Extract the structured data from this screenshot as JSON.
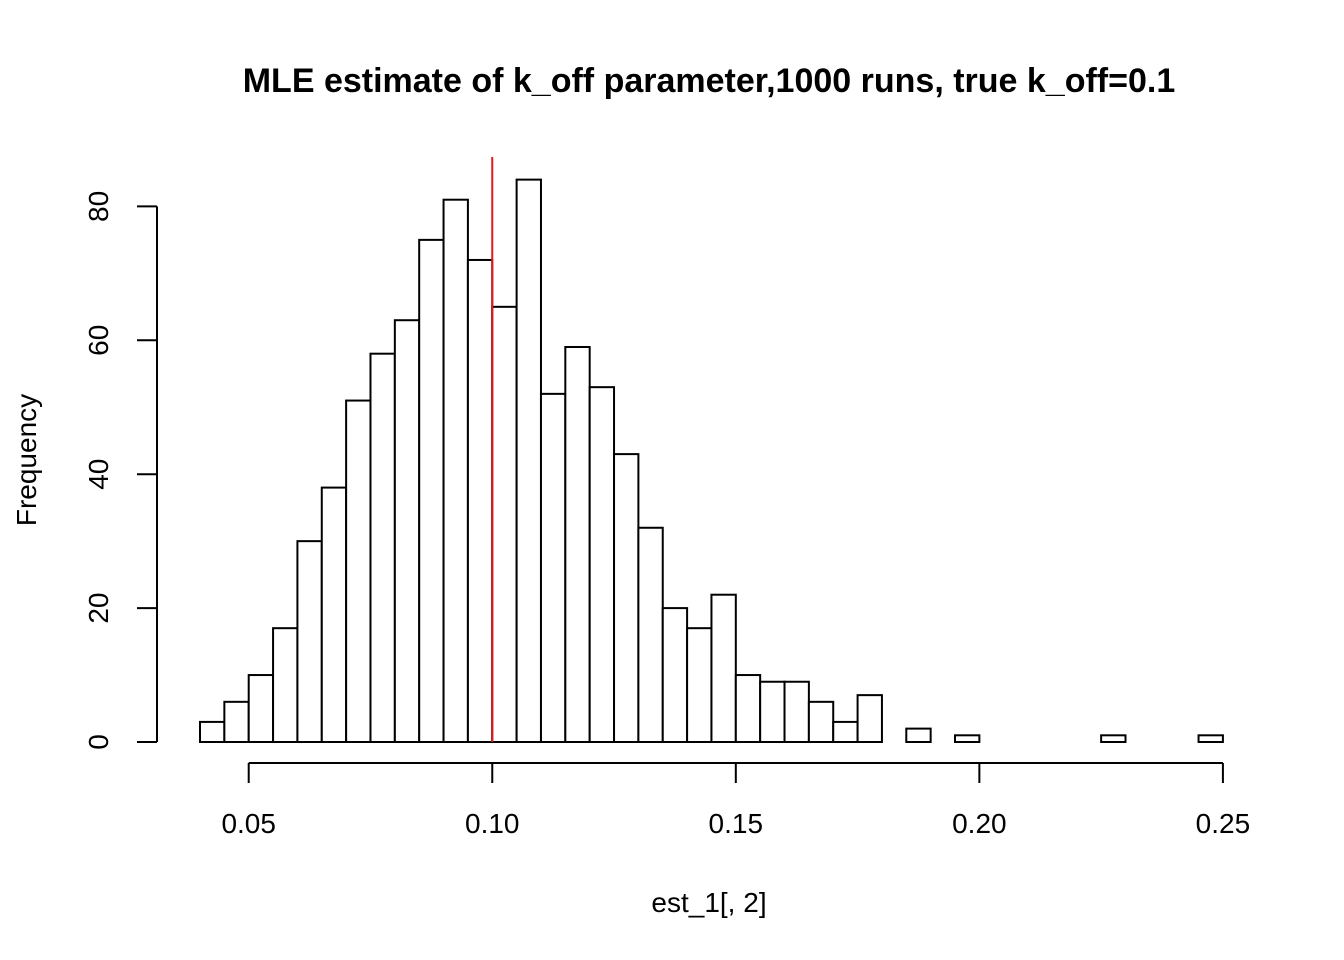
{
  "chart_data": {
    "type": "bar",
    "title": "MLE estimate of k_off parameter,1000 runs, true k_off=0.1",
    "xlabel": "est_1[, 2]",
    "ylabel": "Frequency",
    "bin_width": 0.005,
    "bins_start": [
      0.04,
      0.045,
      0.05,
      0.055,
      0.06,
      0.065,
      0.07,
      0.075,
      0.08,
      0.085,
      0.09,
      0.095,
      0.1,
      0.105,
      0.11,
      0.115,
      0.12,
      0.125,
      0.13,
      0.135,
      0.14,
      0.145,
      0.15,
      0.155,
      0.16,
      0.165,
      0.17,
      0.175,
      0.18,
      0.185,
      0.19,
      0.195,
      0.2,
      0.205,
      0.21,
      0.215,
      0.22,
      0.225,
      0.23,
      0.235,
      0.24,
      0.245
    ],
    "values": [
      3,
      6,
      10,
      17,
      30,
      38,
      51,
      58,
      63,
      75,
      81,
      72,
      65,
      84,
      52,
      59,
      53,
      43,
      32,
      20,
      17,
      22,
      10,
      9,
      9,
      6,
      3,
      7,
      0,
      2,
      0,
      1,
      0,
      0,
      0,
      0,
      0,
      1,
      0,
      0,
      0,
      1
    ],
    "xlim": [
      0.04,
      0.25
    ],
    "ylim": [
      0,
      87
    ],
    "x_ticks": [
      0.05,
      0.1,
      0.15,
      0.2,
      0.25
    ],
    "x_tick_labels": [
      "0.05",
      "0.10",
      "0.15",
      "0.20",
      "0.25"
    ],
    "y_ticks": [
      0,
      20,
      40,
      60,
      80
    ],
    "y_tick_labels": [
      "0",
      "20",
      "40",
      "60",
      "80"
    ],
    "reference_line": {
      "x": 0.1,
      "color": "#e31a1c"
    },
    "grid": false,
    "bar_fill": "#ffffff",
    "bar_stroke": "#000000"
  }
}
